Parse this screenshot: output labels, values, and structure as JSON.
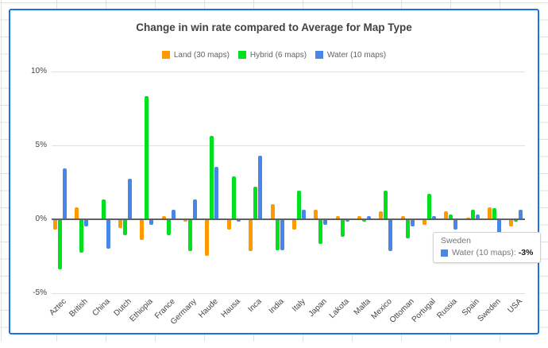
{
  "chart_data": {
    "type": "bar",
    "title": "Change in win rate compared to Average for Map Type",
    "units": "%",
    "categories": [
      "Aztec",
      "British",
      "China",
      "Dutch",
      "Ethiopia",
      "France",
      "Germany",
      "Haude",
      "Hausa",
      "Inca",
      "India",
      "Italy",
      "Japan",
      "Lakota",
      "Malta",
      "Mexico",
      "Ottoman",
      "Portugal",
      "Russia",
      "Spain",
      "Sweden",
      "USA"
    ],
    "series": [
      {
        "name": "Land (30 maps)",
        "color": "#ff9900",
        "values": [
          -0.7,
          0.8,
          0,
          -0.6,
          -1.4,
          0.2,
          -0.2,
          -2.5,
          -0.7,
          -2.2,
          1.0,
          -0.7,
          0.6,
          0.2,
          0.2,
          0.5,
          0.2,
          -0.4,
          0.5,
          0.1,
          0.8,
          -0.5
        ]
      },
      {
        "name": "Hybrid (6 maps)",
        "color": "#00e01e",
        "values": [
          -3.4,
          -2.3,
          1.3,
          -1.1,
          8.3,
          -1.1,
          -2.2,
          5.6,
          2.9,
          2.2,
          -2.1,
          1.9,
          -1.7,
          -1.2,
          -0.2,
          1.9,
          -1.3,
          1.7,
          0.3,
          0.6,
          0.7,
          -0.2
        ]
      },
      {
        "name": "Water (10 maps)",
        "color": "#4a86e8",
        "values": [
          3.4,
          -0.5,
          -2.0,
          2.7,
          -0.4,
          0.6,
          1.3,
          3.5,
          -0.2,
          4.3,
          -2.1,
          0.6,
          -0.4,
          -0.2,
          0.2,
          -2.2,
          -0.5,
          0.2,
          -0.7,
          0.3,
          -3.0,
          0.6
        ]
      }
    ],
    "y_ticks": [
      10,
      5,
      0,
      -5
    ],
    "y_tick_labels": [
      "10%",
      "5%",
      "0%",
      "-5%"
    ],
    "ylim": [
      -5,
      10
    ],
    "grid": true,
    "legend_position": "top",
    "zero_line_color": "#616161",
    "gridline_color": "#e0e0e0"
  },
  "tooltip": {
    "category": "Sweden",
    "series_label": "Water (10 maps):",
    "value_label": "-3%",
    "color": "#4a86e8"
  }
}
